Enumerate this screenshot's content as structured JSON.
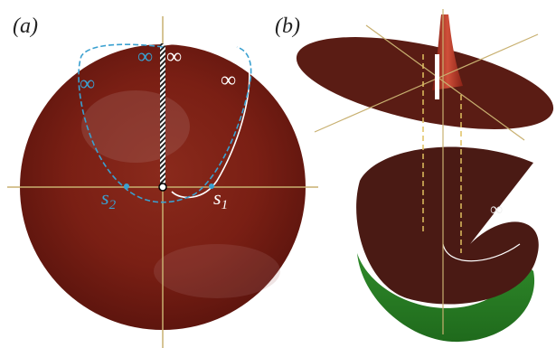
{
  "panels": [
    {
      "label": "(a)",
      "infinity_labels": [
        "∞",
        "∞",
        "∞",
        "∞"
      ],
      "points": [
        {
          "base": "s",
          "subscript": "2"
        },
        {
          "base": "s",
          "subscript": "1"
        }
      ]
    },
    {
      "label": "(b)",
      "infinity_labels": [
        "∞"
      ]
    }
  ]
}
